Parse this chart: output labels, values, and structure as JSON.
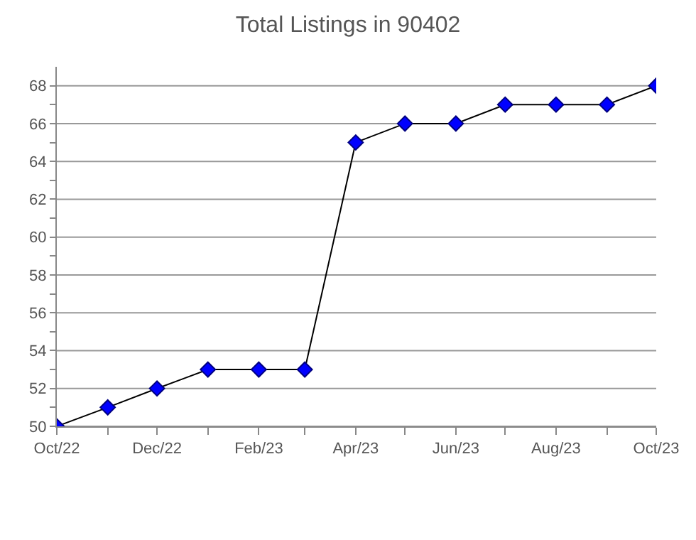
{
  "chart_data": {
    "type": "line",
    "title": "Total Listings in 90402",
    "x": [
      "2022-10",
      "2022-11",
      "2022-12",
      "2023-01",
      "2023-02",
      "2023-03",
      "2023-04",
      "2023-05",
      "2023-06",
      "2023-07",
      "2023-08",
      "2023-09",
      "2023-10"
    ],
    "series": [
      {
        "color": "#0000ff",
        "values": [
          50,
          51,
          52,
          53,
          53,
          53,
          65,
          66,
          66,
          67,
          67,
          67,
          68
        ]
      }
    ],
    "xlim": [
      "2022-10",
      "2023-10"
    ],
    "xticks": [
      {
        "value": "2022-10",
        "label": "Oct/22"
      },
      {
        "value": "2022-11",
        "label": null
      },
      {
        "value": "2022-12",
        "label": "Dec/22"
      },
      {
        "value": "2023-01",
        "label": null
      },
      {
        "value": "2023-02",
        "label": "Feb/23"
      },
      {
        "value": "2023-03",
        "label": null
      },
      {
        "value": "2023-04",
        "label": "Apr/23"
      },
      {
        "value": "2023-05",
        "label": null
      },
      {
        "value": "2023-06",
        "label": "Jun/23"
      },
      {
        "value": "2023-07",
        "label": null
      },
      {
        "value": "2023-08",
        "label": "Aug/23"
      },
      {
        "value": "2023-09",
        "label": null
      },
      {
        "value": "2023-10",
        "label": "Oct/23"
      }
    ],
    "ylim": [
      50,
      69
    ],
    "yticks": [
      50,
      {
        "value": 51,
        "label": null
      },
      52,
      {
        "value": 53,
        "label": null
      },
      54,
      {
        "value": 55,
        "label": null
      },
      56,
      {
        "value": 57,
        "label": null
      },
      58,
      {
        "value": 59,
        "label": null
      },
      60,
      {
        "value": 61,
        "label": null
      },
      62,
      {
        "value": 63,
        "label": null
      },
      64,
      {
        "value": 65,
        "label": null
      },
      66,
      {
        "value": 67,
        "label": null
      },
      68
    ],
    "grid": "y",
    "marker": "diamond",
    "line_style": "solid",
    "legend": false
  }
}
